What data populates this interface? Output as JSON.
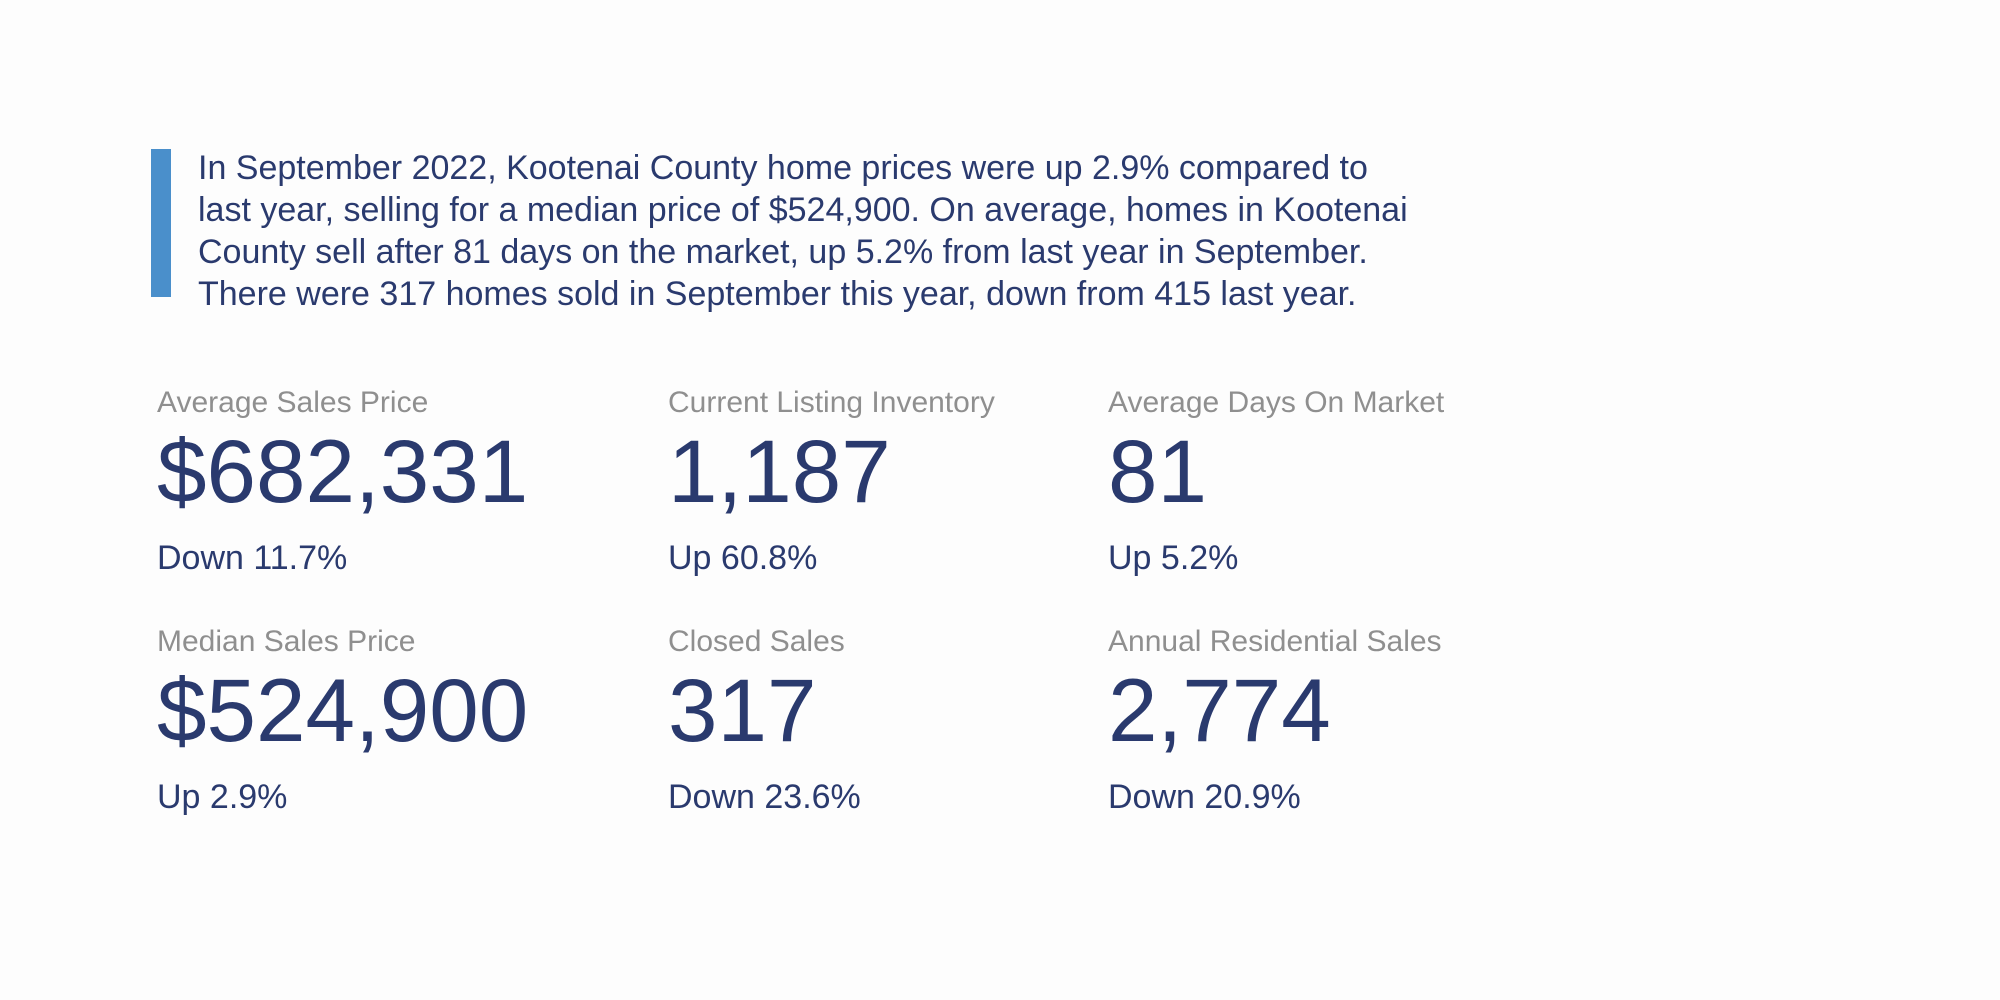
{
  "colors": {
    "navy": "#2a3a6e",
    "label_gray": "#8f8f8f",
    "accent_blue": "#4a8fcb",
    "background": "#fdfdfd"
  },
  "summary": {
    "text": "In September 2022, Kootenai County home prices were up 2.9% compared to last year, selling for a median price of $524,900. On average, homes in Kootenai County sell after 81 days on the market, up 5.2% from last year in September. There were 317 homes sold in September this year, down from 415 last year."
  },
  "stats": [
    {
      "label": "Average Sales Price",
      "value": "$682,331",
      "change": "Down 11.7%"
    },
    {
      "label": "Current Listing Inventory",
      "value": "1,187",
      "change": "Up 60.8%"
    },
    {
      "label": "Average Days On Market",
      "value": "81",
      "change": "Up 5.2%"
    },
    {
      "label": "Median Sales Price",
      "value": "$524,900",
      "change": "Up 2.9%"
    },
    {
      "label": "Closed Sales",
      "value": "317",
      "change": "Down 23.6%"
    },
    {
      "label": "Annual Residential Sales",
      "value": "2,774",
      "change": "Down 20.9%"
    }
  ]
}
